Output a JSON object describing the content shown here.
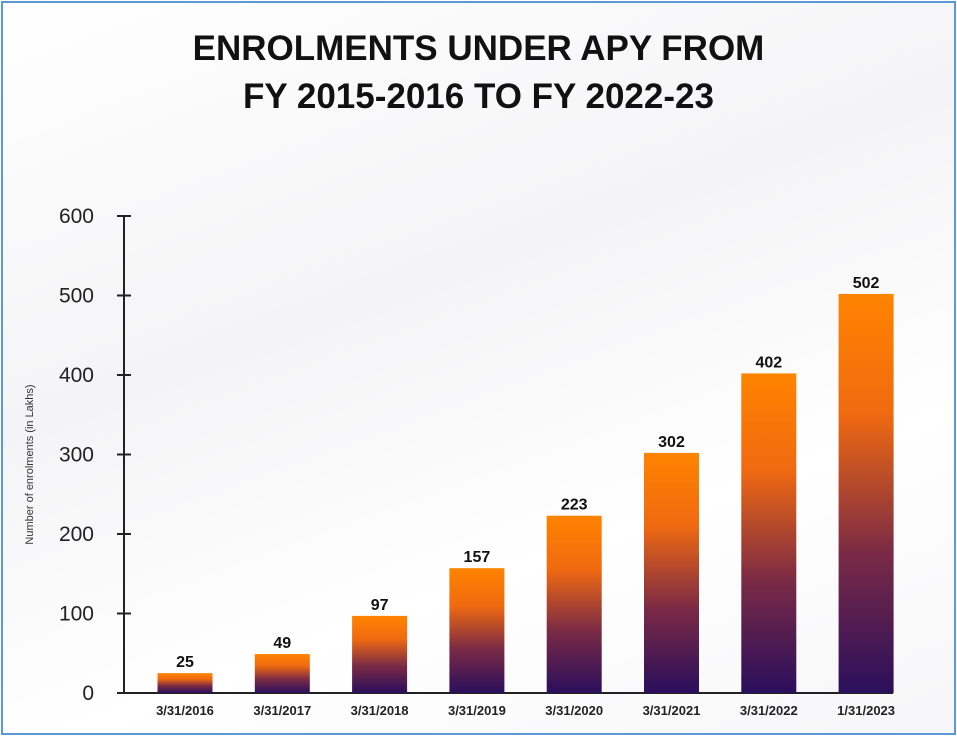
{
  "chart_data": {
    "type": "bar",
    "title_lines": [
      "ENROLMENTS UNDER APY FROM",
      "FY 2015-2016 TO FY 2022-23"
    ],
    "title": "ENROLMENTS UNDER APY FROM FY 2015-2016 TO FY 2022-23",
    "xlabel": "",
    "ylabel": "Number of enrolments (in Lakhs)",
    "categories": [
      "3/31/2016",
      "3/31/2017",
      "3/31/2018",
      "3/31/2019",
      "3/31/2020",
      "3/31/2021",
      "3/31/2022",
      "1/31/2023"
    ],
    "values": [
      25,
      49,
      97,
      157,
      223,
      302,
      402,
      502
    ],
    "data_labels": [
      "25",
      "49",
      "97",
      "157",
      "223",
      "302",
      "402",
      "502"
    ],
    "y_ticks": [
      0,
      100,
      200,
      300,
      400,
      500,
      600
    ],
    "ylim": [
      0,
      600
    ],
    "grid": false,
    "legend": "none",
    "colors": {
      "bar_top": "#ff8200",
      "bar_bottom": "#2a0f5c",
      "axis": "#222222",
      "frame": "#5b9bd5"
    }
  }
}
